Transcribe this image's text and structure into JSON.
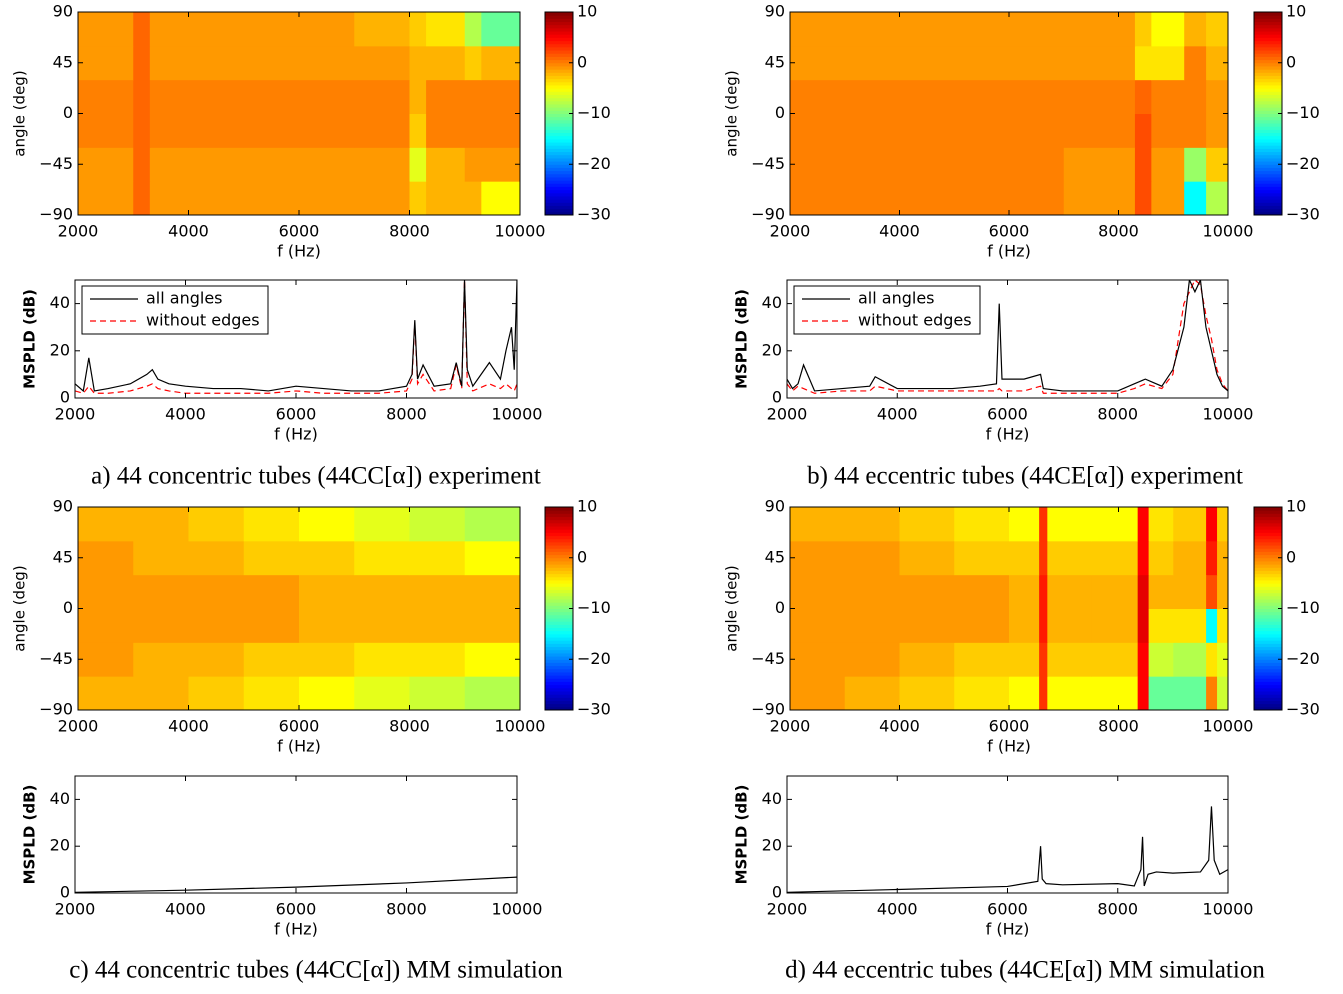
{
  "chart_data": [
    {
      "type": "heatmap",
      "xlabel": "f (Hz)",
      "ylabel": "angle (deg)",
      "colormap": "jet",
      "xlim": [
        2000,
        10000
      ],
      "xticks": [
        2000,
        4000,
        6000,
        8000,
        10000
      ],
      "ylim": [
        -90,
        90
      ],
      "yticks": [
        {
          "value": -90,
          "label": "−90"
        },
        {
          "value": -45,
          "label": "−45"
        },
        0,
        45,
        90
      ],
      "clim": [
        -30,
        10
      ],
      "cticks": [
        10,
        0,
        {
          "value": -10,
          "label": "−10"
        },
        {
          "value": -20,
          "label": "−20"
        },
        {
          "value": -30,
          "label": "−30"
        }
      ],
      "xbins": [
        2000,
        3000,
        3300,
        4000,
        5000,
        6000,
        7000,
        8000,
        8300,
        9000,
        9300,
        10000
      ],
      "ybins": [
        -90,
        -60,
        -30,
        0,
        30,
        60,
        90
      ],
      "z": [
        [
          -1,
          1,
          -1,
          -1,
          -1,
          -1,
          -1,
          -3,
          -2,
          -2,
          -5
        ],
        [
          -1,
          1,
          -1,
          -1,
          -1,
          -1,
          -1,
          -6,
          -2,
          -1,
          -1
        ],
        [
          0,
          1,
          0,
          0,
          0,
          0,
          0,
          -3,
          0,
          0,
          0
        ],
        [
          0,
          1,
          0,
          0,
          0,
          0,
          0,
          -2,
          0,
          0,
          0
        ],
        [
          -1,
          1,
          -1,
          -1,
          -1,
          -1,
          -1,
          -2,
          -2,
          -3,
          -2
        ],
        [
          -1,
          1,
          -1,
          -1,
          -1,
          -1,
          -2,
          -3,
          -4,
          -8,
          -11
        ]
      ]
    },
    {
      "type": "line",
      "xlabel": "f (Hz)",
      "ylabel": "MSPLD (dB)",
      "legend": "upper left",
      "caption": "a) 44 concentric tubes (44CC[α]) experiment",
      "xlim": [
        2000,
        10000
      ],
      "xticks": [
        2000,
        4000,
        6000,
        8000,
        10000
      ],
      "ylim": [
        0,
        50
      ],
      "yticks": [
        0,
        20,
        40
      ],
      "x": [
        2000,
        2150,
        2250,
        2350,
        2600,
        3000,
        3300,
        3400,
        3500,
        3700,
        4000,
        4500,
        5000,
        5500,
        6000,
        6500,
        7000,
        7500,
        8000,
        8100,
        8150,
        8200,
        8300,
        8500,
        8800,
        8900,
        9000,
        9050,
        9100,
        9200,
        9500,
        9700,
        9800,
        9900,
        9950,
        10000
      ],
      "series": [
        {
          "name": "all angles",
          "color": "#000000",
          "linestyle": "-",
          "values": [
            6,
            3,
            17,
            3,
            4,
            6,
            10,
            12,
            8,
            6,
            5,
            4,
            4,
            3,
            5,
            4,
            3,
            3,
            5,
            10,
            33,
            8,
            14,
            5,
            6,
            15,
            5,
            50,
            12,
            5,
            15,
            8,
            20,
            30,
            12,
            50
          ]
        },
        {
          "name": "without edges",
          "color": "#ff0000",
          "linestyle": "--",
          "values": [
            3,
            2,
            5,
            2,
            2,
            3,
            5,
            6,
            4,
            3,
            2,
            2,
            2,
            2,
            3,
            2,
            2,
            2,
            3,
            8,
            32,
            6,
            10,
            3,
            4,
            14,
            4,
            50,
            6,
            3,
            6,
            4,
            6,
            4,
            3,
            6
          ]
        }
      ]
    },
    {
      "type": "heatmap",
      "xlabel": "f (Hz)",
      "ylabel": "angle (deg)",
      "colormap": "jet",
      "xlim": [
        2000,
        10000
      ],
      "xticks": [
        2000,
        4000,
        6000,
        8000,
        10000
      ],
      "ylim": [
        -90,
        90
      ],
      "yticks": [
        {
          "value": -90,
          "label": "−90"
        },
        {
          "value": -45,
          "label": "−45"
        },
        0,
        45,
        90
      ],
      "clim": [
        -30,
        10
      ],
      "cticks": [
        10,
        0,
        {
          "value": -10,
          "label": "−10"
        },
        {
          "value": -20,
          "label": "−20"
        },
        {
          "value": -30,
          "label": "−30"
        }
      ],
      "xbins": [
        2000,
        3000,
        4000,
        5000,
        6000,
        7000,
        8000,
        8300,
        8600,
        9200,
        9600,
        10000
      ],
      "ybins": [
        -90,
        -60,
        -30,
        0,
        30,
        60,
        90
      ],
      "z": [
        [
          0,
          0,
          0,
          0,
          0,
          -1,
          -1,
          2,
          -1,
          -15,
          -8
        ],
        [
          0,
          0,
          0,
          0,
          0,
          -1,
          -1,
          2,
          -1,
          -9,
          -3
        ],
        [
          0,
          0,
          0,
          0,
          0,
          0,
          0,
          2,
          0,
          0,
          -1
        ],
        [
          0,
          0,
          0,
          0,
          0,
          0,
          0,
          1,
          0,
          0,
          -1
        ],
        [
          -1,
          -1,
          -1,
          -1,
          -1,
          -1,
          -1,
          -4,
          -4,
          0,
          -2
        ],
        [
          -1,
          -1,
          -1,
          -1,
          -1,
          -1,
          -1,
          -3,
          -5,
          -2,
          -3
        ]
      ]
    },
    {
      "type": "line",
      "xlabel": "f (Hz)",
      "ylabel": "MSPLD (dB)",
      "legend": "upper left",
      "caption": "b) 44 eccentric tubes (44CE[α]) experiment",
      "xlim": [
        2000,
        10000
      ],
      "xticks": [
        2000,
        4000,
        6000,
        8000,
        10000
      ],
      "ylim": [
        0,
        50
      ],
      "yticks": [
        0,
        20,
        40
      ],
      "x": [
        2000,
        2100,
        2200,
        2300,
        2500,
        3000,
        3500,
        3600,
        4000,
        5000,
        5500,
        5800,
        5850,
        5900,
        6000,
        6300,
        6600,
        6650,
        7000,
        8000,
        8300,
        8500,
        8800,
        9000,
        9200,
        9300,
        9400,
        9500,
        9600,
        9700,
        9800,
        9900,
        10000
      ],
      "series": [
        {
          "name": "all angles",
          "color": "#000000",
          "linestyle": "-",
          "values": [
            8,
            4,
            6,
            14,
            3,
            4,
            5,
            9,
            4,
            4,
            5,
            6,
            40,
            8,
            8,
            8,
            10,
            4,
            3,
            3,
            6,
            8,
            5,
            12,
            30,
            50,
            45,
            50,
            30,
            20,
            10,
            5,
            3
          ]
        },
        {
          "name": "without edges",
          "color": "#ff0000",
          "linestyle": "--",
          "values": [
            6,
            3,
            5,
            4,
            2,
            3,
            3,
            5,
            3,
            3,
            3,
            3,
            4,
            3,
            3,
            3,
            5,
            2,
            2,
            2,
            4,
            6,
            4,
            10,
            40,
            45,
            50,
            48,
            35,
            25,
            12,
            6,
            3
          ]
        }
      ]
    },
    {
      "type": "heatmap",
      "xlabel": "f (Hz)",
      "ylabel": "angle (deg)",
      "colormap": "jet",
      "xlim": [
        2000,
        10000
      ],
      "xticks": [
        2000,
        4000,
        6000,
        8000,
        10000
      ],
      "ylim": [
        -90,
        90
      ],
      "yticks": [
        {
          "value": -90,
          "label": "−90"
        },
        {
          "value": -45,
          "label": "−45"
        },
        0,
        45,
        90
      ],
      "clim": [
        -30,
        10
      ],
      "cticks": [
        10,
        0,
        {
          "value": -10,
          "label": "−10"
        },
        {
          "value": -20,
          "label": "−20"
        },
        {
          "value": -30,
          "label": "−30"
        }
      ],
      "xbins": [
        2000,
        3000,
        4000,
        5000,
        6000,
        7000,
        8000,
        9000,
        10000
      ],
      "ybins": [
        -90,
        -60,
        -30,
        0,
        30,
        60,
        90
      ],
      "z": [
        [
          -2,
          -2,
          -3,
          -4,
          -5,
          -6,
          -7,
          -8
        ],
        [
          -1,
          -2,
          -2,
          -3,
          -3,
          -4,
          -4,
          -5
        ],
        [
          -1,
          -1,
          -1,
          -1,
          -2,
          -2,
          -2,
          -2
        ],
        [
          -1,
          -1,
          -1,
          -1,
          -2,
          -2,
          -2,
          -2
        ],
        [
          -1,
          -2,
          -2,
          -3,
          -3,
          -4,
          -4,
          -5
        ],
        [
          -2,
          -2,
          -3,
          -4,
          -5,
          -6,
          -7,
          -8
        ]
      ]
    },
    {
      "type": "line",
      "xlabel": "f (Hz)",
      "ylabel": "MSPLD (dB)",
      "caption": "c) 44 concentric tubes (44CC[α]) MM simulation",
      "xlim": [
        2000,
        10000
      ],
      "xticks": [
        2000,
        4000,
        6000,
        8000,
        10000
      ],
      "ylim": [
        0,
        50
      ],
      "yticks": [
        0,
        20,
        40
      ],
      "x": [
        2000,
        4000,
        6000,
        8000,
        10000
      ],
      "series": [
        {
          "color": "#000000",
          "linestyle": "-",
          "values": [
            0.3,
            1.2,
            2.5,
            4.3,
            6.8
          ]
        }
      ]
    },
    {
      "type": "heatmap",
      "xlabel": "f (Hz)",
      "ylabel": "angle (deg)",
      "colormap": "jet",
      "xlim": [
        2000,
        10000
      ],
      "xticks": [
        2000,
        4000,
        6000,
        8000,
        10000
      ],
      "ylim": [
        -90,
        90
      ],
      "yticks": [
        {
          "value": -90,
          "label": "−90"
        },
        {
          "value": -45,
          "label": "−45"
        },
        0,
        45,
        90
      ],
      "clim": [
        -30,
        10
      ],
      "cticks": [
        10,
        0,
        {
          "value": -10,
          "label": "−10"
        },
        {
          "value": -20,
          "label": "−20"
        },
        {
          "value": -30,
          "label": "−30"
        }
      ],
      "xbins": [
        2000,
        3000,
        4000,
        5000,
        6000,
        6550,
        6700,
        7500,
        8350,
        8550,
        9000,
        9600,
        9800,
        10000
      ],
      "ybins": [
        -90,
        -60,
        -30,
        0,
        30,
        60,
        90
      ],
      "z": [
        [
          -1,
          -2,
          -3,
          -4,
          -5,
          3,
          -5,
          -5,
          5,
          -11,
          -11,
          0,
          -7
        ],
        [
          -1,
          -1,
          -2,
          -3,
          -3,
          3,
          -3,
          -3,
          5,
          -7,
          -8,
          -4,
          -6
        ],
        [
          -1,
          -1,
          -1,
          -1,
          -2,
          4,
          -2,
          -2,
          6,
          -4,
          -4,
          -15,
          -4
        ],
        [
          -1,
          -1,
          -1,
          -1,
          -2,
          4,
          -2,
          -2,
          6,
          -2,
          -2,
          2,
          -2
        ],
        [
          -1,
          -1,
          -2,
          -3,
          -3,
          3,
          -3,
          -3,
          5,
          -3,
          -2,
          4,
          -2
        ],
        [
          -2,
          -2,
          -3,
          -4,
          -5,
          3,
          -5,
          -5,
          5,
          -4,
          -3,
          5,
          -3
        ]
      ]
    },
    {
      "type": "line",
      "xlabel": "f (Hz)",
      "ylabel": "MSPLD (dB)",
      "caption": "d) 44 eccentric tubes (44CE[α]) MM simulation",
      "xlim": [
        2000,
        10000
      ],
      "xticks": [
        2000,
        4000,
        6000,
        8000,
        10000
      ],
      "ylim": [
        0,
        50
      ],
      "yticks": [
        0,
        20,
        40
      ],
      "x": [
        2000,
        4000,
        6000,
        6550,
        6600,
        6630,
        6700,
        7000,
        8000,
        8300,
        8420,
        8450,
        8480,
        8550,
        8700,
        9000,
        9500,
        9650,
        9700,
        9750,
        9850,
        10000
      ],
      "series": [
        {
          "color": "#000000",
          "linestyle": "-",
          "values": [
            0.3,
            1.5,
            2.8,
            5,
            20,
            6,
            4,
            3.5,
            4,
            3,
            10,
            24,
            3,
            8,
            9,
            8.5,
            9,
            14,
            37,
            14,
            8,
            10
          ]
        }
      ]
    }
  ]
}
